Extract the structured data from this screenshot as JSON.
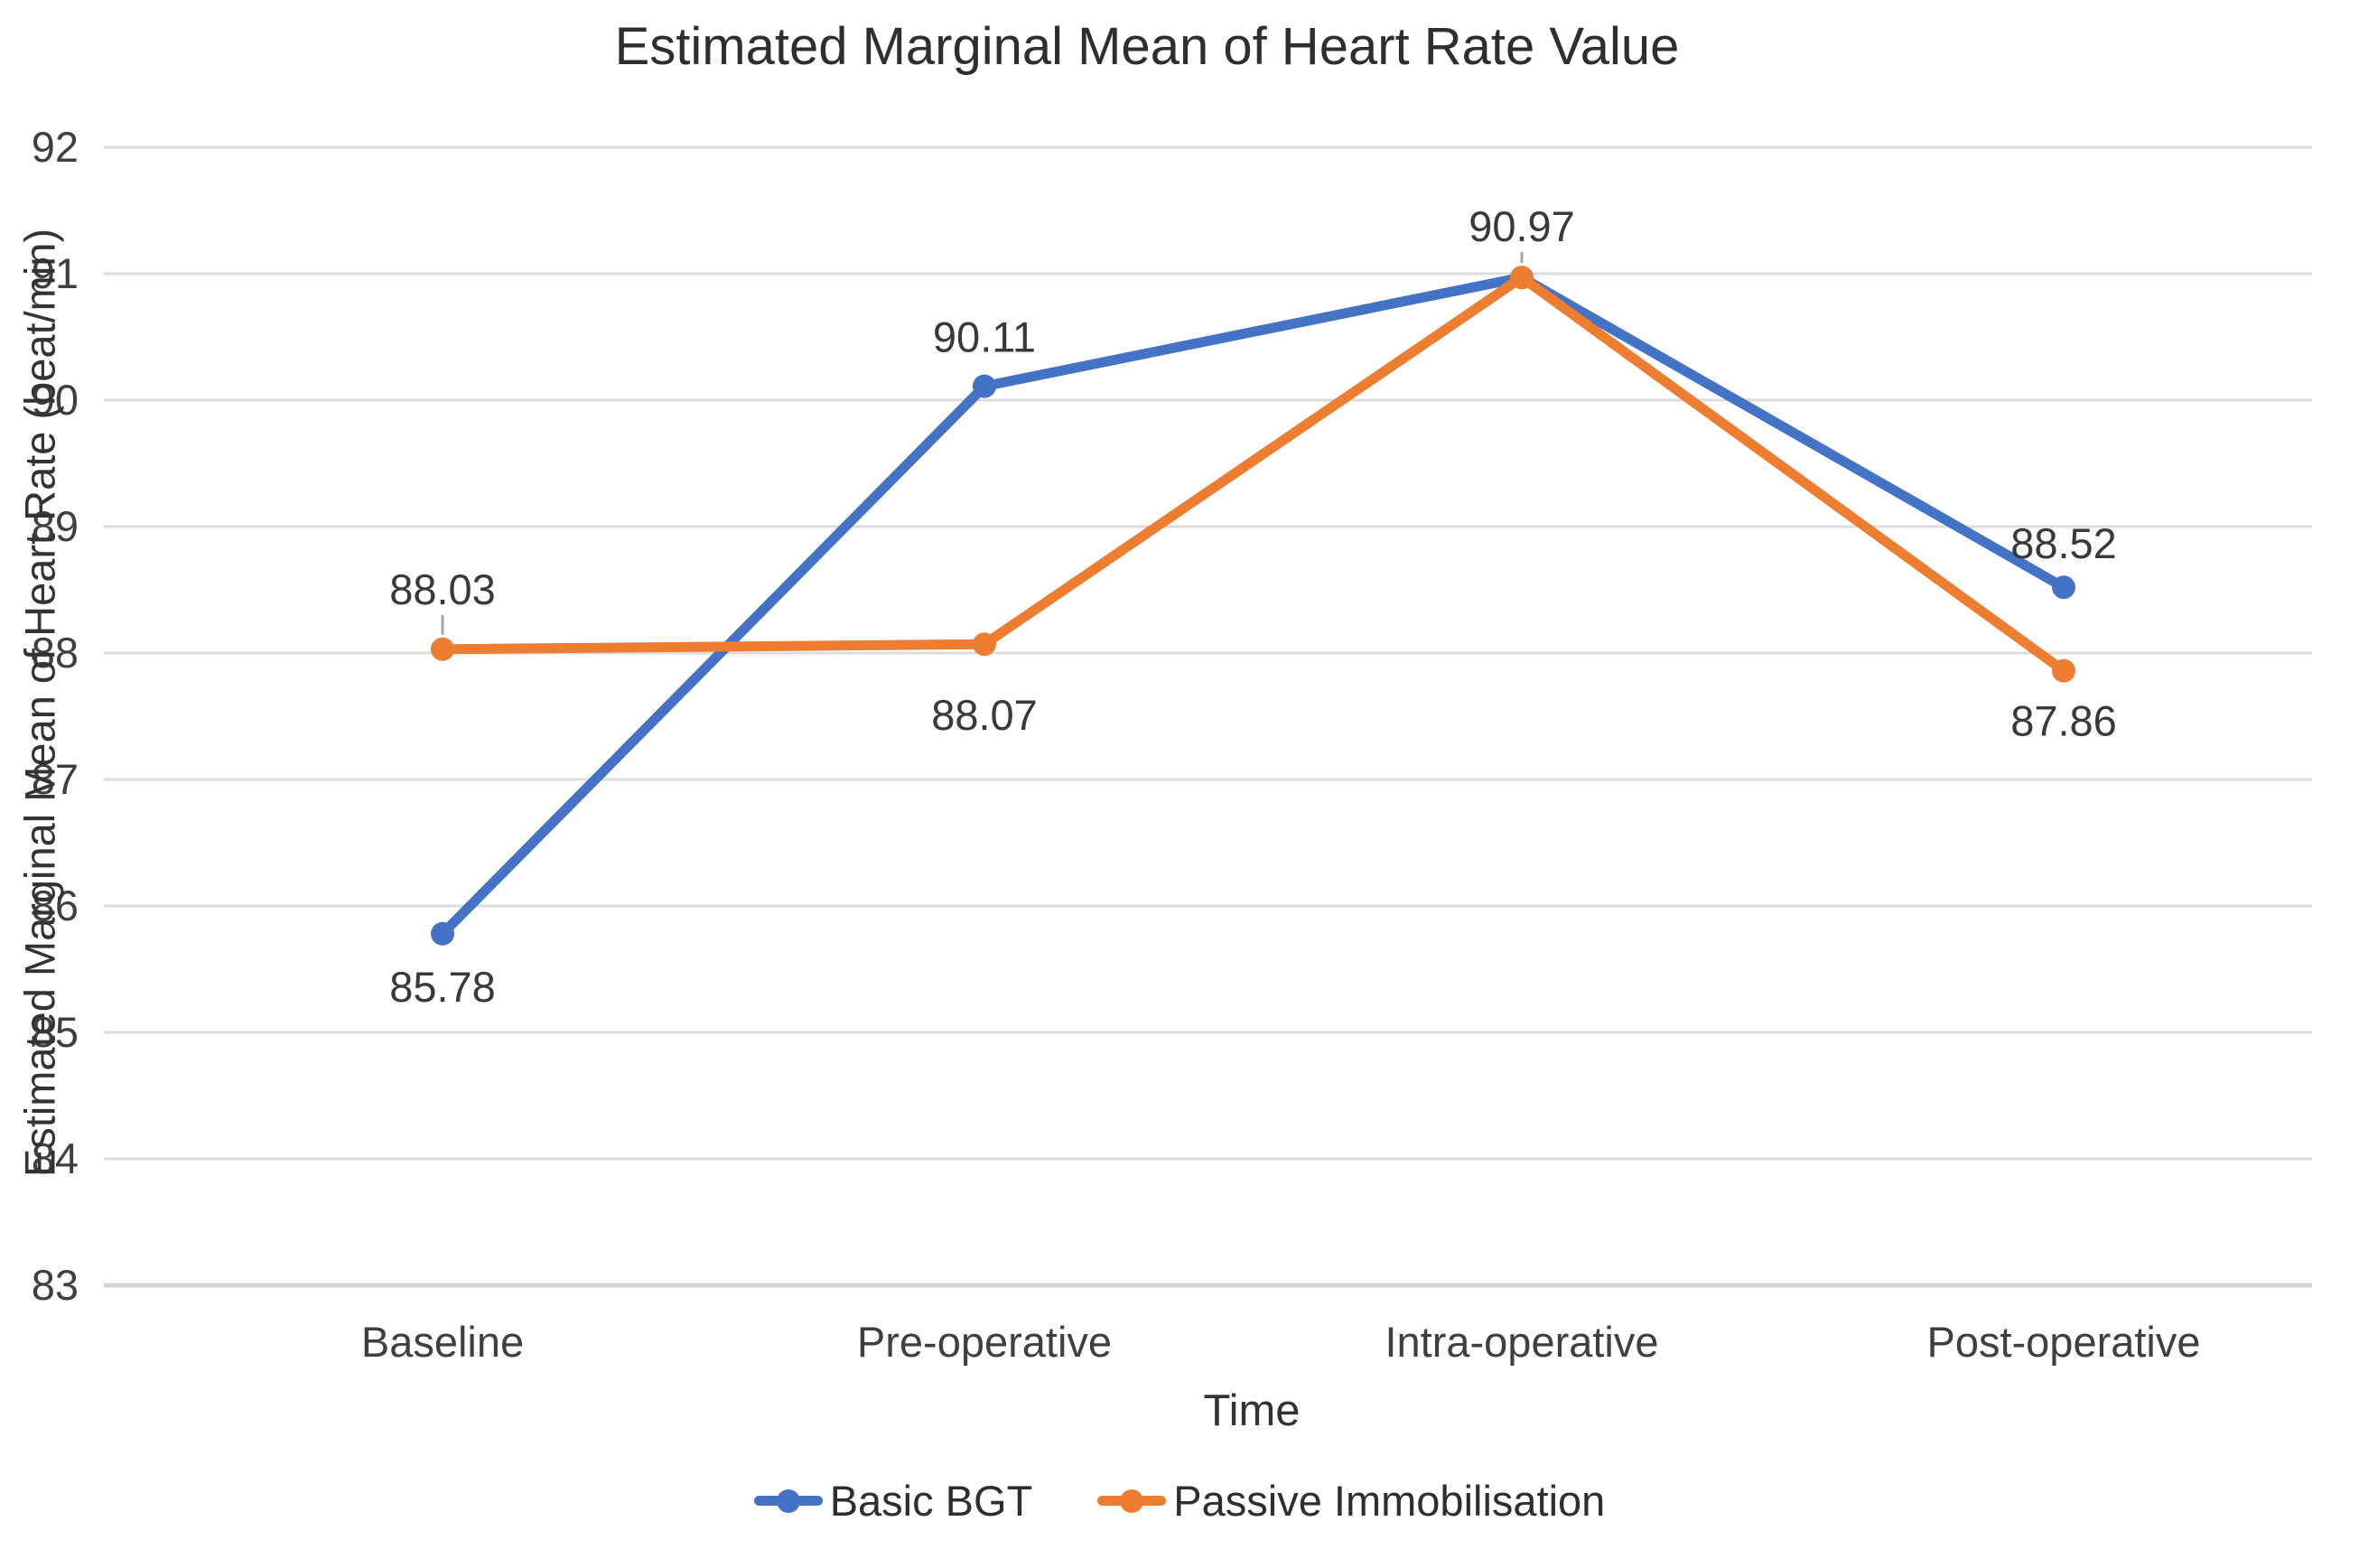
{
  "page": {
    "background": "#ffffff"
  },
  "chart_data": {
    "type": "line",
    "title": "Estimated Marginal Mean of Heart Rate Value",
    "xlabel": "Time",
    "ylabel": "Estimated Marginal Mean of Heart Rate (beat/min)",
    "categories": [
      "Baseline",
      "Pre-operative",
      "Intra-operative",
      "Post-operative"
    ],
    "ylim": [
      83,
      92
    ],
    "ytick_step": 1,
    "grid": true,
    "legend_position": "bottom",
    "gridline_color": "#DCDCDC",
    "axis_line_color": "#D2D0D0",
    "text_color": "#3F3F3F",
    "leader_color": "#A6A6A6",
    "series": [
      {
        "name": "Basic BGT",
        "color": "#4472C4",
        "values": [
          85.78,
          90.11,
          90.97,
          88.52
        ],
        "data_labels": [
          {
            "text": "85.78",
            "placement": "below",
            "dy": 75
          },
          {
            "text": "90.11",
            "placement": "above",
            "dy": -38
          },
          {
            "text": "",
            "placement": "none"
          },
          {
            "text": "88.52",
            "placement": "above",
            "dy": -32
          }
        ]
      },
      {
        "name": "Passive Immobilisation",
        "color": "#ED7D31",
        "values": [
          88.03,
          88.07,
          90.97,
          87.86
        ],
        "data_labels": [
          {
            "text": "88.03",
            "placement": "above",
            "dy": -50,
            "leader": true
          },
          {
            "text": "88.07",
            "placement": "below",
            "dy": 95
          },
          {
            "text": "90.97",
            "placement": "above",
            "dy": -40,
            "leader": true
          },
          {
            "text": "87.86",
            "placement": "below",
            "dy": 72
          }
        ]
      }
    ]
  }
}
